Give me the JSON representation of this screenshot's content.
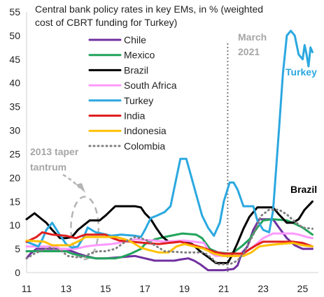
{
  "chart_data": {
    "type": "line",
    "title_lines": [
      "Central bank policy rates in key EMs, in % (weighted",
      "cost of CBRT funding for Turkey)"
    ],
    "xlabel": "",
    "ylabel": "",
    "xlim": [
      2011,
      2025.8
    ],
    "ylim": [
      0,
      55
    ],
    "x_ticks": [
      2011,
      2013,
      2015,
      2017,
      2019,
      2021,
      2023,
      2025
    ],
    "x_tick_labels": [
      "11",
      "13",
      "15",
      "17",
      "19",
      "21",
      "23",
      "25"
    ],
    "y_ticks": [
      0,
      5,
      10,
      15,
      20,
      25,
      30,
      35,
      40,
      45,
      50,
      55
    ],
    "y_tick_labels": [
      "0",
      "5",
      "10",
      "15",
      "20",
      "25",
      "30",
      "35",
      "40",
      "45",
      "50",
      "55"
    ],
    "grid": false,
    "legend_position": "top-left",
    "annotations": {
      "march_2021_lines": [
        "March",
        "2021"
      ],
      "march_2021_x": 2021.2,
      "taper_lines": [
        "2013 taper",
        "tantrum"
      ],
      "taper_ellipse": {
        "cx": 2013.95,
        "cy": 9.4,
        "rx": 0.7,
        "ry": 6.6
      },
      "turkey_label": "Turkey",
      "brazil_label": "Brazil"
    },
    "series": [
      {
        "name": "Chile",
        "color": "#7030a0",
        "dash": "solid",
        "points": [
          [
            2011.0,
            3.0
          ],
          [
            2011.2,
            4.0
          ],
          [
            2011.5,
            5.0
          ],
          [
            2012.0,
            5.0
          ],
          [
            2013.0,
            5.0
          ],
          [
            2013.3,
            4.5
          ],
          [
            2013.6,
            4.0
          ],
          [
            2014.0,
            3.5
          ],
          [
            2014.5,
            3.0
          ],
          [
            2015.0,
            3.0
          ],
          [
            2015.8,
            3.25
          ],
          [
            2016.5,
            3.5
          ],
          [
            2017.0,
            3.0
          ],
          [
            2017.5,
            2.5
          ],
          [
            2018.5,
            2.5
          ],
          [
            2018.8,
            2.75
          ],
          [
            2019.2,
            3.0
          ],
          [
            2019.5,
            2.5
          ],
          [
            2019.8,
            1.75
          ],
          [
            2020.2,
            0.5
          ],
          [
            2021.0,
            0.5
          ],
          [
            2021.5,
            0.75
          ],
          [
            2021.7,
            1.5
          ],
          [
            2021.9,
            4.0
          ],
          [
            2022.2,
            5.5
          ],
          [
            2022.5,
            9.0
          ],
          [
            2022.8,
            11.25
          ],
          [
            2023.5,
            11.25
          ],
          [
            2023.8,
            9.5
          ],
          [
            2024.2,
            7.25
          ],
          [
            2024.6,
            5.75
          ],
          [
            2025.0,
            5.0
          ],
          [
            2025.5,
            5.0
          ]
        ]
      },
      {
        "name": "Mexico",
        "color": "#22a45c",
        "dash": "solid",
        "points": [
          [
            2011.0,
            4.5
          ],
          [
            2012.0,
            4.5
          ],
          [
            2013.0,
            4.5
          ],
          [
            2013.3,
            4.0
          ],
          [
            2013.8,
            3.5
          ],
          [
            2014.5,
            3.0
          ],
          [
            2015.5,
            3.0
          ],
          [
            2015.8,
            3.25
          ],
          [
            2016.3,
            4.0
          ],
          [
            2016.8,
            5.0
          ],
          [
            2017.0,
            6.0
          ],
          [
            2017.5,
            7.0
          ],
          [
            2018.0,
            7.5
          ],
          [
            2018.9,
            8.25
          ],
          [
            2019.6,
            8.0
          ],
          [
            2019.9,
            7.25
          ],
          [
            2020.3,
            5.0
          ],
          [
            2020.7,
            4.25
          ],
          [
            2021.3,
            4.0
          ],
          [
            2021.5,
            4.25
          ],
          [
            2021.9,
            5.5
          ],
          [
            2022.3,
            7.0
          ],
          [
            2022.7,
            9.5
          ],
          [
            2023.0,
            11.0
          ],
          [
            2023.5,
            11.25
          ],
          [
            2024.2,
            11.0
          ],
          [
            2024.5,
            10.5
          ],
          [
            2025.0,
            9.5
          ],
          [
            2025.5,
            8.0
          ]
        ]
      },
      {
        "name": "Brazil",
        "color": "#000000",
        "dash": "solid",
        "points": [
          [
            2011.0,
            11.25
          ],
          [
            2011.4,
            12.5
          ],
          [
            2011.7,
            11.5
          ],
          [
            2012.0,
            10.5
          ],
          [
            2012.3,
            9.0
          ],
          [
            2012.7,
            7.25
          ],
          [
            2013.0,
            7.25
          ],
          [
            2013.3,
            7.5
          ],
          [
            2013.6,
            9.0
          ],
          [
            2013.9,
            10.0
          ],
          [
            2014.2,
            11.0
          ],
          [
            2014.7,
            11.0
          ],
          [
            2015.0,
            12.0
          ],
          [
            2015.5,
            14.0
          ],
          [
            2016.5,
            14.0
          ],
          [
            2016.8,
            13.75
          ],
          [
            2017.0,
            12.5
          ],
          [
            2017.3,
            11.25
          ],
          [
            2017.6,
            9.25
          ],
          [
            2017.9,
            7.5
          ],
          [
            2018.2,
            6.5
          ],
          [
            2019.0,
            6.5
          ],
          [
            2019.4,
            6.0
          ],
          [
            2019.8,
            4.5
          ],
          [
            2020.3,
            3.0
          ],
          [
            2020.6,
            2.0
          ],
          [
            2021.2,
            2.0
          ],
          [
            2021.4,
            3.5
          ],
          [
            2021.7,
            6.25
          ],
          [
            2022.0,
            9.25
          ],
          [
            2022.3,
            11.75
          ],
          [
            2022.7,
            13.75
          ],
          [
            2023.5,
            13.75
          ],
          [
            2023.8,
            12.25
          ],
          [
            2024.2,
            10.5
          ],
          [
            2024.5,
            10.5
          ],
          [
            2024.8,
            11.25
          ],
          [
            2025.1,
            13.25
          ],
          [
            2025.5,
            15.0
          ]
        ]
      },
      {
        "name": "South Africa",
        "color": "#ff99ff",
        "dash": "solid",
        "points": [
          [
            2011.0,
            5.5
          ],
          [
            2012.5,
            5.5
          ],
          [
            2012.7,
            5.0
          ],
          [
            2013.5,
            5.0
          ],
          [
            2014.0,
            5.5
          ],
          [
            2014.5,
            5.75
          ],
          [
            2015.3,
            6.0
          ],
          [
            2016.0,
            6.5
          ],
          [
            2016.5,
            7.0
          ],
          [
            2017.5,
            6.75
          ],
          [
            2018.0,
            6.5
          ],
          [
            2019.0,
            6.75
          ],
          [
            2019.5,
            6.5
          ],
          [
            2020.0,
            6.25
          ],
          [
            2020.3,
            4.25
          ],
          [
            2020.6,
            3.5
          ],
          [
            2021.7,
            3.5
          ],
          [
            2022.0,
            4.0
          ],
          [
            2022.5,
            5.5
          ],
          [
            2023.0,
            7.25
          ],
          [
            2023.5,
            8.25
          ],
          [
            2024.5,
            8.25
          ],
          [
            2024.8,
            8.0
          ],
          [
            2025.2,
            7.5
          ],
          [
            2025.5,
            7.25
          ]
        ]
      },
      {
        "name": "Turkey",
        "color": "#2ba8e0",
        "dash": "solid",
        "points": [
          [
            2011.0,
            6.5
          ],
          [
            2011.3,
            6.0
          ],
          [
            2011.6,
            5.5
          ],
          [
            2011.8,
            7.0
          ],
          [
            2012.0,
            9.0
          ],
          [
            2012.3,
            10.5
          ],
          [
            2012.6,
            8.5
          ],
          [
            2013.0,
            6.0
          ],
          [
            2013.3,
            5.25
          ],
          [
            2013.6,
            5.5
          ],
          [
            2013.9,
            7.5
          ],
          [
            2014.1,
            9.5
          ],
          [
            2014.5,
            8.5
          ],
          [
            2014.8,
            8.25
          ],
          [
            2015.3,
            7.75
          ],
          [
            2015.8,
            8.0
          ],
          [
            2016.5,
            7.75
          ],
          [
            2016.8,
            7.5
          ],
          [
            2017.0,
            9.0
          ],
          [
            2017.3,
            11.5
          ],
          [
            2017.6,
            12.0
          ],
          [
            2018.0,
            12.75
          ],
          [
            2018.3,
            14.0
          ],
          [
            2018.6,
            20.0
          ],
          [
            2018.8,
            24.0
          ],
          [
            2019.1,
            24.0
          ],
          [
            2019.3,
            21.0
          ],
          [
            2019.6,
            16.5
          ],
          [
            2019.9,
            12.0
          ],
          [
            2020.2,
            9.5
          ],
          [
            2020.5,
            7.75
          ],
          [
            2020.8,
            10.5
          ],
          [
            2021.0,
            15.0
          ],
          [
            2021.3,
            19.0
          ],
          [
            2021.5,
            19.0
          ],
          [
            2021.7,
            17.5
          ],
          [
            2022.0,
            14.0
          ],
          [
            2022.5,
            14.0
          ],
          [
            2022.7,
            11.0
          ],
          [
            2023.0,
            9.0
          ],
          [
            2023.3,
            8.5
          ],
          [
            2023.5,
            13.0
          ],
          [
            2023.8,
            30.0
          ],
          [
            2024.0,
            42.0
          ],
          [
            2024.2,
            50.0
          ],
          [
            2024.4,
            51.0
          ],
          [
            2024.6,
            50.0
          ],
          [
            2024.8,
            46.0
          ],
          [
            2025.0,
            45.0
          ],
          [
            2025.1,
            48.0
          ],
          [
            2025.2,
            46.0
          ],
          [
            2025.3,
            43.5
          ],
          [
            2025.4,
            47.5
          ],
          [
            2025.5,
            46.5
          ]
        ]
      },
      {
        "name": "India",
        "color": "#e01f1f",
        "dash": "solid",
        "points": [
          [
            2011.0,
            6.5
          ],
          [
            2011.5,
            7.5
          ],
          [
            2011.8,
            8.5
          ],
          [
            2012.3,
            8.0
          ],
          [
            2013.0,
            7.75
          ],
          [
            2013.5,
            7.25
          ],
          [
            2013.8,
            7.75
          ],
          [
            2014.0,
            8.0
          ],
          [
            2015.0,
            8.0
          ],
          [
            2015.2,
            7.5
          ],
          [
            2015.7,
            6.75
          ],
          [
            2016.3,
            6.5
          ],
          [
            2017.0,
            6.25
          ],
          [
            2017.7,
            6.0
          ],
          [
            2018.2,
            6.25
          ],
          [
            2018.8,
            6.5
          ],
          [
            2019.5,
            5.75
          ],
          [
            2020.0,
            5.15
          ],
          [
            2020.5,
            4.4
          ],
          [
            2021.0,
            4.0
          ],
          [
            2022.0,
            4.0
          ],
          [
            2022.3,
            4.9
          ],
          [
            2022.7,
            5.9
          ],
          [
            2023.0,
            6.5
          ],
          [
            2024.5,
            6.5
          ],
          [
            2025.0,
            6.25
          ],
          [
            2025.5,
            5.5
          ]
        ]
      },
      {
        "name": "Indonesia",
        "color": "#ffc000",
        "dash": "solid",
        "points": [
          [
            2011.0,
            6.75
          ],
          [
            2011.9,
            6.5
          ],
          [
            2012.3,
            5.75
          ],
          [
            2013.2,
            5.75
          ],
          [
            2013.7,
            6.75
          ],
          [
            2014.0,
            7.5
          ],
          [
            2015.0,
            7.5
          ],
          [
            2015.5,
            7.5
          ],
          [
            2016.0,
            7.0
          ],
          [
            2016.3,
            6.5
          ],
          [
            2016.8,
            5.25
          ],
          [
            2017.2,
            4.75
          ],
          [
            2017.7,
            4.25
          ],
          [
            2018.2,
            4.25
          ],
          [
            2018.6,
            5.5
          ],
          [
            2019.0,
            6.0
          ],
          [
            2019.5,
            5.5
          ],
          [
            2020.0,
            5.0
          ],
          [
            2020.5,
            4.0
          ],
          [
            2021.0,
            3.5
          ],
          [
            2022.0,
            3.5
          ],
          [
            2022.4,
            4.25
          ],
          [
            2022.8,
            5.5
          ],
          [
            2023.2,
            5.75
          ],
          [
            2023.8,
            6.0
          ],
          [
            2024.5,
            6.25
          ],
          [
            2025.0,
            5.75
          ],
          [
            2025.5,
            5.5
          ]
        ]
      },
      {
        "name": "Colombia",
        "color": "#7f7f7f",
        "dash": "dotted",
        "points": [
          [
            2011.0,
            3.0
          ],
          [
            2011.4,
            4.0
          ],
          [
            2011.8,
            4.75
          ],
          [
            2012.2,
            5.25
          ],
          [
            2012.7,
            4.75
          ],
          [
            2013.1,
            3.5
          ],
          [
            2013.5,
            3.25
          ],
          [
            2013.9,
            3.25
          ],
          [
            2014.2,
            4.0
          ],
          [
            2014.6,
            4.5
          ],
          [
            2015.0,
            4.5
          ],
          [
            2015.5,
            5.0
          ],
          [
            2016.0,
            6.5
          ],
          [
            2016.5,
            7.5
          ],
          [
            2017.0,
            7.0
          ],
          [
            2017.5,
            5.75
          ],
          [
            2018.0,
            4.5
          ],
          [
            2019.0,
            4.25
          ],
          [
            2020.0,
            4.25
          ],
          [
            2020.4,
            3.0
          ],
          [
            2020.7,
            1.75
          ],
          [
            2021.3,
            1.75
          ],
          [
            2021.7,
            2.5
          ],
          [
            2022.0,
            4.0
          ],
          [
            2022.5,
            8.0
          ],
          [
            2022.9,
            12.0
          ],
          [
            2023.3,
            13.25
          ],
          [
            2023.8,
            13.25
          ],
          [
            2024.2,
            12.25
          ],
          [
            2024.6,
            10.75
          ],
          [
            2025.0,
            9.5
          ],
          [
            2025.5,
            9.25
          ]
        ]
      }
    ]
  }
}
